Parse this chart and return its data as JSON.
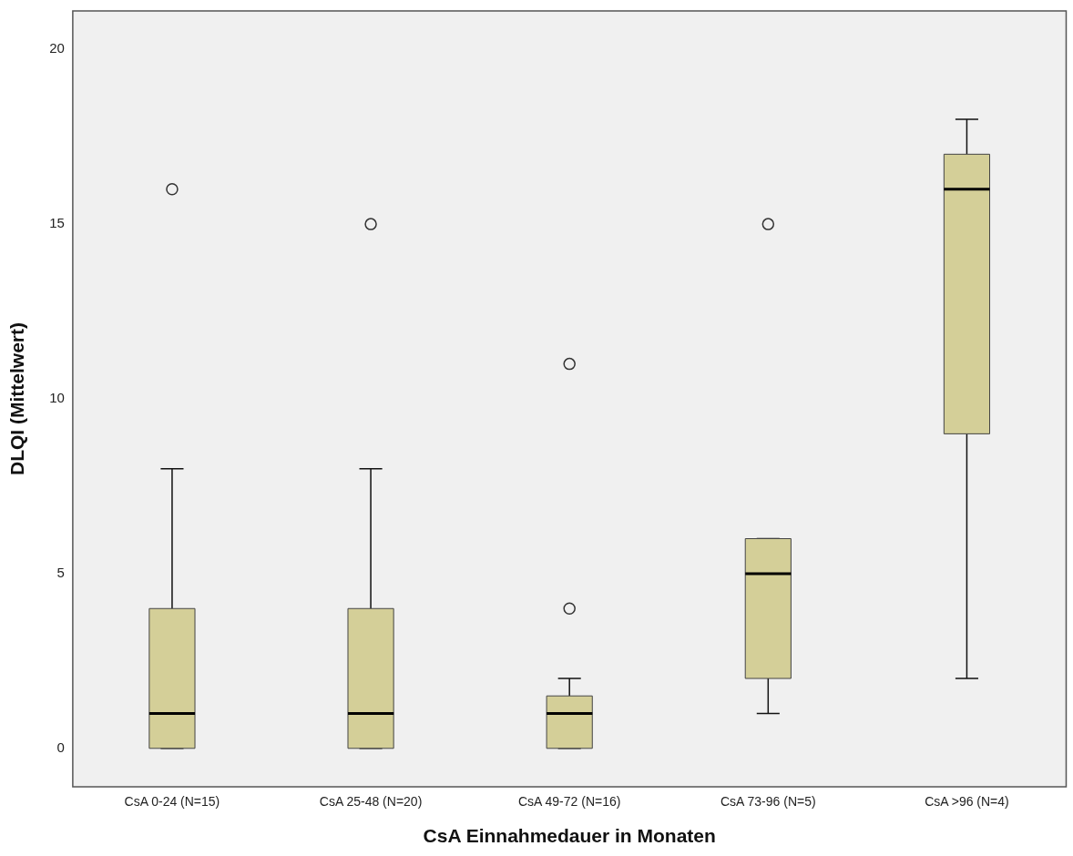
{
  "chart_data": {
    "type": "box",
    "xlabel": "CsA Einnahmedauer in Monaten",
    "ylabel": "DLQI (Mittelwert)",
    "categories": [
      "CsA 0-24 (N=15)",
      "CsA 25-48 (N=20)",
      "CsA 49-72 (N=16)",
      "CsA 73-96 (N=5)",
      "CsA >96 (N=4)"
    ],
    "color": "#d4cf98",
    "boxes": [
      {
        "low": 0,
        "q1": 0,
        "median": 1,
        "q3": 4,
        "high": 8,
        "outliers": [
          16
        ]
      },
      {
        "low": 0,
        "q1": 0,
        "median": 1,
        "q3": 4,
        "high": 8,
        "outliers": [
          15
        ]
      },
      {
        "low": 0,
        "q1": 0,
        "median": 1,
        "q3": 1.5,
        "high": 2,
        "outliers": [
          4,
          11
        ]
      },
      {
        "low": 1,
        "q1": 2,
        "median": 5,
        "q3": 6,
        "high": 6,
        "outliers": [
          15
        ]
      },
      {
        "low": 2,
        "q1": 9,
        "median": 16,
        "q3": 17,
        "high": 18
      }
    ],
    "ylim": [
      -1.1,
      21.1
    ],
    "yticks": [
      0,
      5,
      10,
      15,
      20
    ]
  }
}
